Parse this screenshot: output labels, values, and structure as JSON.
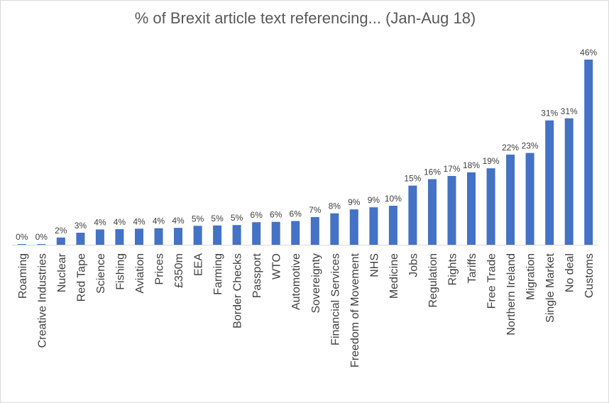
{
  "chart_data": {
    "type": "bar",
    "title": "% of Brexit article text referencing... (Jan-Aug 18)",
    "xlabel": "",
    "ylabel": "",
    "ylim": [
      0,
      0.46
    ],
    "grid": false,
    "legend": "none",
    "bar_color": "#4472c4",
    "categories": [
      "Roaming",
      "Creative Industries",
      "Nuclear",
      "Red Tape",
      "Science",
      "Fishing",
      "Aviation",
      "Prices",
      "£350m",
      "EEA",
      "Farming",
      "Border Checks",
      "Passport",
      "WTO",
      "Automotive",
      "Sovereignty",
      "Financial Services",
      "Freedom of Movement",
      "NHS",
      "Medicine",
      "Jobs",
      "Regulation",
      "Rights",
      "Tariffs",
      "Free Trade",
      "Northern Ireland",
      "Migration",
      "Single Market",
      "No deal",
      "Customs"
    ],
    "values": [
      0.001,
      0.001,
      0.018,
      0.03,
      0.038,
      0.039,
      0.04,
      0.041,
      0.042,
      0.047,
      0.048,
      0.049,
      0.056,
      0.057,
      0.059,
      0.069,
      0.078,
      0.088,
      0.093,
      0.097,
      0.147,
      0.163,
      0.171,
      0.18,
      0.19,
      0.224,
      0.228,
      0.309,
      0.314,
      0.46
    ],
    "data_labels": [
      "0%",
      "0%",
      "2%",
      "3%",
      "4%",
      "4%",
      "4%",
      "4%",
      "4%",
      "5%",
      "5%",
      "5%",
      "6%",
      "6%",
      "6%",
      "7%",
      "8%",
      "9%",
      "9%",
      "10%",
      "15%",
      "16%",
      "17%",
      "18%",
      "19%",
      "22%",
      "23%",
      "31%",
      "31%",
      "46%"
    ]
  }
}
